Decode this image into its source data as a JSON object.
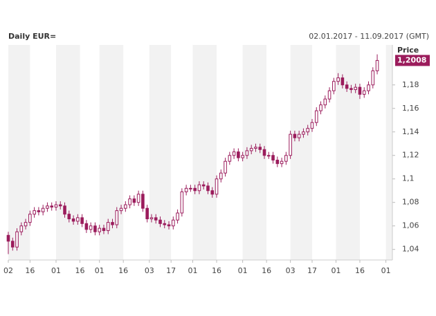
{
  "chart_data": {
    "type": "candlestick",
    "title": "Daily EUR=",
    "date_range": "02.01.2017 - 11.09.2017 (GMT)",
    "y_axis_label": "Price",
    "last_label": "1,2008",
    "color": "#9b1c5c",
    "band_color": "#f2f2f2",
    "x": [
      0,
      2,
      4,
      6,
      8,
      10,
      12,
      14,
      16,
      18,
      20,
      22,
      24,
      26,
      28,
      30,
      32,
      34,
      36,
      38,
      40,
      42,
      44,
      46,
      48,
      50,
      52,
      54,
      56,
      58,
      60,
      62,
      64,
      66,
      68,
      70,
      72,
      74,
      76,
      78,
      80,
      82,
      84,
      86,
      88,
      90,
      92,
      94,
      96,
      98,
      100,
      102,
      104,
      106,
      108,
      110,
      112,
      114,
      116,
      118,
      120,
      122,
      124,
      126,
      128,
      130,
      132,
      134,
      136,
      138,
      140,
      142,
      144,
      146,
      148,
      150,
      152,
      154,
      156,
      158,
      160,
      162,
      164,
      166,
      168,
      170
    ],
    "open": [
      1.052,
      1.047,
      1.042,
      1.055,
      1.06,
      1.063,
      1.07,
      1.073,
      1.072,
      1.075,
      1.077,
      1.076,
      1.078,
      1.077,
      1.07,
      1.066,
      1.064,
      1.067,
      1.062,
      1.057,
      1.06,
      1.055,
      1.058,
      1.056,
      1.063,
      1.061,
      1.073,
      1.075,
      1.078,
      1.083,
      1.08,
      1.087,
      1.075,
      1.066,
      1.067,
      1.065,
      1.062,
      1.061,
      1.06,
      1.065,
      1.071,
      1.089,
      1.092,
      1.092,
      1.09,
      1.095,
      1.094,
      1.09,
      1.087,
      1.1,
      1.105,
      1.115,
      1.12,
      1.123,
      1.118,
      1.12,
      1.124,
      1.126,
      1.127,
      1.125,
      1.12,
      1.12,
      1.116,
      1.113,
      1.115,
      1.12,
      1.138,
      1.135,
      1.138,
      1.14,
      1.143,
      1.148,
      1.158,
      1.163,
      1.168,
      1.175,
      1.183,
      1.186,
      1.18,
      1.177,
      1.176,
      1.178,
      1.172,
      1.175,
      1.18,
      1.192
    ],
    "high": [
      1.055,
      1.05,
      1.058,
      1.063,
      1.066,
      1.073,
      1.076,
      1.076,
      1.078,
      1.08,
      1.08,
      1.081,
      1.081,
      1.08,
      1.073,
      1.069,
      1.07,
      1.07,
      1.065,
      1.063,
      1.063,
      1.061,
      1.061,
      1.066,
      1.066,
      1.076,
      1.078,
      1.081,
      1.086,
      1.086,
      1.09,
      1.09,
      1.078,
      1.07,
      1.07,
      1.068,
      1.065,
      1.064,
      1.068,
      1.074,
      1.092,
      1.095,
      1.095,
      1.095,
      1.098,
      1.098,
      1.097,
      1.093,
      1.103,
      1.108,
      1.118,
      1.123,
      1.126,
      1.126,
      1.123,
      1.127,
      1.129,
      1.13,
      1.13,
      1.128,
      1.123,
      1.123,
      1.119,
      1.118,
      1.123,
      1.141,
      1.141,
      1.141,
      1.143,
      1.146,
      1.151,
      1.161,
      1.166,
      1.171,
      1.178,
      1.186,
      1.19,
      1.189,
      1.183,
      1.18,
      1.181,
      1.181,
      1.178,
      1.183,
      1.195,
      1.206
    ],
    "low": [
      1.036,
      1.039,
      1.039,
      1.052,
      1.057,
      1.06,
      1.067,
      1.069,
      1.069,
      1.072,
      1.073,
      1.073,
      1.074,
      1.067,
      1.063,
      1.061,
      1.061,
      1.059,
      1.054,
      1.054,
      1.052,
      1.052,
      1.053,
      1.053,
      1.058,
      1.058,
      1.07,
      1.072,
      1.075,
      1.077,
      1.077,
      1.072,
      1.063,
      1.063,
      1.062,
      1.059,
      1.058,
      1.057,
      1.057,
      1.062,
      1.068,
      1.086,
      1.089,
      1.087,
      1.087,
      1.091,
      1.087,
      1.084,
      1.084,
      1.097,
      1.102,
      1.112,
      1.117,
      1.115,
      1.115,
      1.117,
      1.121,
      1.123,
      1.122,
      1.117,
      1.117,
      1.113,
      1.11,
      1.11,
      1.112,
      1.117,
      1.132,
      1.132,
      1.135,
      1.137,
      1.14,
      1.145,
      1.155,
      1.16,
      1.165,
      1.172,
      1.18,
      1.177,
      1.174,
      1.173,
      1.173,
      1.168,
      1.169,
      1.172,
      1.177,
      1.189
    ],
    "close": [
      1.047,
      1.042,
      1.055,
      1.06,
      1.063,
      1.07,
      1.073,
      1.072,
      1.075,
      1.077,
      1.076,
      1.078,
      1.077,
      1.07,
      1.066,
      1.064,
      1.067,
      1.062,
      1.057,
      1.06,
      1.055,
      1.058,
      1.056,
      1.063,
      1.061,
      1.073,
      1.075,
      1.078,
      1.083,
      1.08,
      1.087,
      1.075,
      1.066,
      1.067,
      1.065,
      1.062,
      1.061,
      1.06,
      1.065,
      1.071,
      1.089,
      1.092,
      1.092,
      1.09,
      1.095,
      1.094,
      1.09,
      1.087,
      1.1,
      1.105,
      1.115,
      1.12,
      1.123,
      1.118,
      1.12,
      1.124,
      1.126,
      1.127,
      1.125,
      1.12,
      1.12,
      1.116,
      1.113,
      1.115,
      1.12,
      1.138,
      1.135,
      1.138,
      1.14,
      1.143,
      1.148,
      1.158,
      1.163,
      1.168,
      1.175,
      1.183,
      1.186,
      1.18,
      1.177,
      1.176,
      1.178,
      1.172,
      1.175,
      1.18,
      1.192,
      1.2008
    ],
    "xlim": [
      0,
      177
    ],
    "xticks": [
      {
        "value": 0,
        "label": "02"
      },
      {
        "value": 10,
        "label": "16"
      },
      {
        "value": 22,
        "label": "01"
      },
      {
        "value": 33,
        "label": "16"
      },
      {
        "value": 42,
        "label": "01"
      },
      {
        "value": 53,
        "label": "16"
      },
      {
        "value": 65,
        "label": "03"
      },
      {
        "value": 75,
        "label": "17"
      },
      {
        "value": 85,
        "label": "01"
      },
      {
        "value": 96,
        "label": "16"
      },
      {
        "value": 108,
        "label": "01"
      },
      {
        "value": 119,
        "label": "16"
      },
      {
        "value": 130,
        "label": "03"
      },
      {
        "value": 140,
        "label": "17"
      },
      {
        "value": 151,
        "label": "01"
      },
      {
        "value": 162,
        "label": "16"
      },
      {
        "value": 174,
        "label": "01"
      }
    ],
    "ylim": [
      1.031,
      1.214
    ],
    "yticks": [
      {
        "value": 1.04,
        "label": "1,04"
      },
      {
        "value": 1.06,
        "label": "1,06"
      },
      {
        "value": 1.08,
        "label": "1,08"
      },
      {
        "value": 1.1,
        "label": "1,1"
      },
      {
        "value": 1.12,
        "label": "1,12"
      },
      {
        "value": 1.14,
        "label": "1,14"
      },
      {
        "value": 1.16,
        "label": "1,16"
      },
      {
        "value": 1.18,
        "label": "1,18"
      }
    ]
  }
}
